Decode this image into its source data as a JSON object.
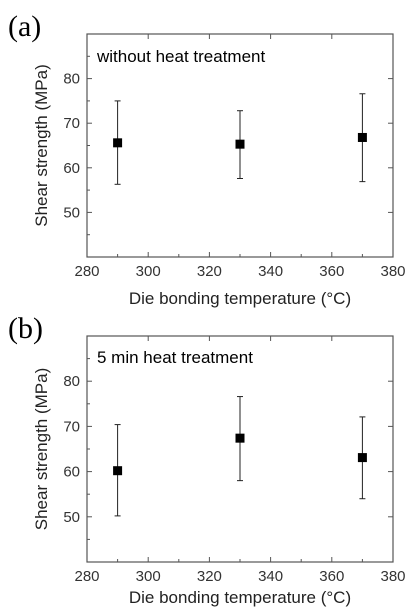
{
  "chart_data": [
    {
      "type": "scatter",
      "panel_label": "(a)",
      "annotation": "without heat treatment",
      "xlabel": "Die bonding temperature (°C)",
      "ylabel": "Shear strength (MPa)",
      "xlim": [
        280,
        380
      ],
      "ylim": [
        40,
        90
      ],
      "xticks": [
        280,
        300,
        320,
        340,
        360,
        380
      ],
      "yticks": [
        50,
        60,
        70,
        80
      ],
      "x": [
        290,
        330,
        370
      ],
      "y": [
        65.6,
        65.3,
        66.8
      ],
      "y_err_low": [
        56.3,
        57.6,
        56.9
      ],
      "y_err_high": [
        75.0,
        72.8,
        76.6
      ],
      "marker": "square",
      "grid": false,
      "color": "#000000"
    },
    {
      "type": "scatter",
      "panel_label": "(b)",
      "annotation": "5 min heat treatment",
      "xlabel": "Die bonding temperature (°C)",
      "ylabel": "Shear strength (MPa)",
      "xlim": [
        280,
        380
      ],
      "ylim": [
        40,
        90
      ],
      "xticks": [
        280,
        300,
        320,
        340,
        360,
        380
      ],
      "yticks": [
        50,
        60,
        70,
        80
      ],
      "x": [
        290,
        330,
        370
      ],
      "y": [
        60.2,
        67.4,
        63.1
      ],
      "y_err_low": [
        50.2,
        58.0,
        54.0
      ],
      "y_err_high": [
        70.4,
        76.6,
        72.1
      ],
      "marker": "square",
      "grid": false,
      "color": "#000000"
    }
  ]
}
